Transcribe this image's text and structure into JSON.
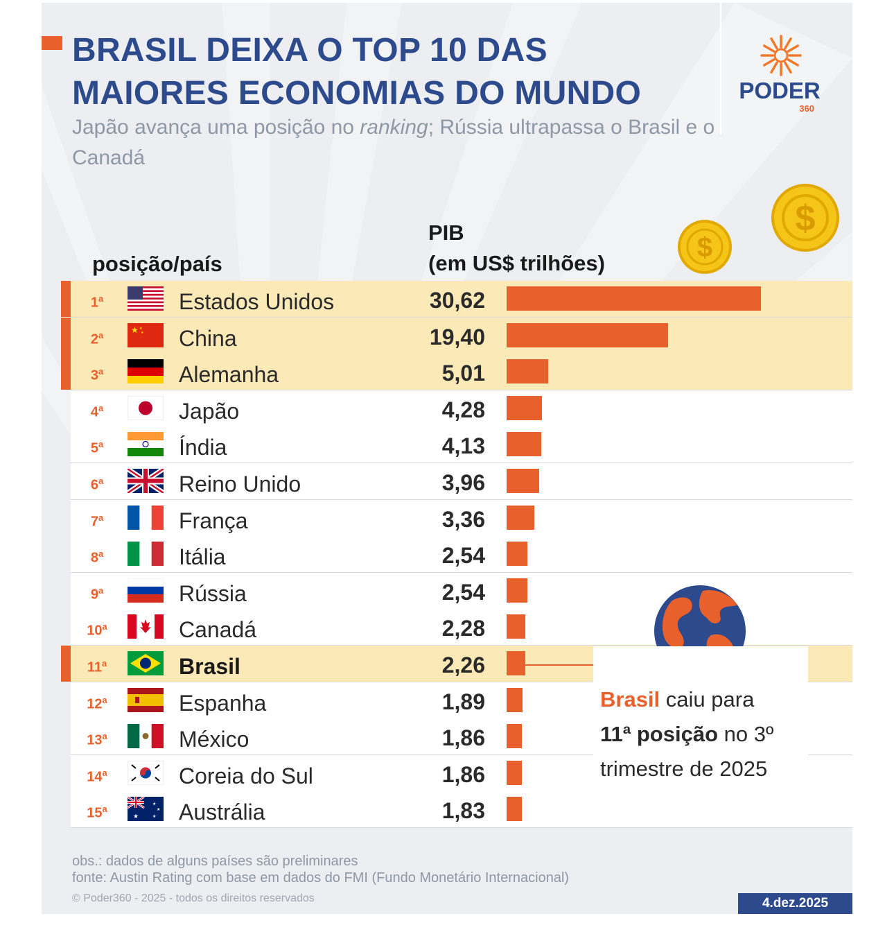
{
  "header": {
    "title_line1": "BRASIL DEIXA O TOP 10 DAS",
    "title_line2": "MAIORES ECONOMIAS DO MUNDO",
    "subtitle_a": "Japão avança uma posição no ",
    "subtitle_em": "ranking",
    "subtitle_b": "; Rússia ultrapassa o Brasil e o Canadá"
  },
  "logo": {
    "name": "PODER",
    "sub": "360"
  },
  "colors": {
    "accent": "#e8612c",
    "navy": "#2c4a8c",
    "highlight": "#fbeab7",
    "background": "#eceef1"
  },
  "chart_data": {
    "type": "bar",
    "orientation": "horizontal",
    "title": "BRASIL DEIXA O TOP 10 DAS MAIORES ECONOMIAS DO MUNDO",
    "column_headers": {
      "position_country": "posição/país",
      "pib_line1": "PIB",
      "pib_line2": "(em US$ trilhões)"
    },
    "xlim": [
      0,
      30.62
    ],
    "rows": [
      {
        "rank": "1",
        "country": "Estados Unidos",
        "value": 30.62,
        "label": "30,62",
        "flag": "us-flag-icon",
        "highlight": "top3"
      },
      {
        "rank": "2",
        "country": "China",
        "value": 19.4,
        "label": "19,40",
        "flag": "china-flag-icon",
        "highlight": "top3"
      },
      {
        "rank": "3",
        "country": "Alemanha",
        "value": 5.01,
        "label": "5,01",
        "flag": "germany-flag-icon",
        "highlight": "top3"
      },
      {
        "rank": "4",
        "country": "Japão",
        "value": 4.28,
        "label": "4,28",
        "flag": "japan-flag-icon",
        "highlight": ""
      },
      {
        "rank": "5",
        "country": "Índia",
        "value": 4.13,
        "label": "4,13",
        "flag": "india-flag-icon",
        "highlight": ""
      },
      {
        "rank": "6",
        "country": "Reino Unido",
        "value": 3.96,
        "label": "3,96",
        "flag": "uk-flag-icon",
        "highlight": ""
      },
      {
        "rank": "7",
        "country": "França",
        "value": 3.36,
        "label": "3,36",
        "flag": "france-flag-icon",
        "highlight": ""
      },
      {
        "rank": "8",
        "country": "Itália",
        "value": 2.54,
        "label": "2,54",
        "flag": "italy-flag-icon",
        "highlight": ""
      },
      {
        "rank": "9",
        "country": "Rússia",
        "value": 2.54,
        "label": "2,54",
        "flag": "russia-flag-icon",
        "highlight": ""
      },
      {
        "rank": "10",
        "country": "Canadá",
        "value": 2.28,
        "label": "2,28",
        "flag": "canada-flag-icon",
        "highlight": ""
      },
      {
        "rank": "11",
        "country": "Brasil",
        "value": 2.26,
        "label": "2,26",
        "flag": "brazil-flag-icon",
        "highlight": "brasil"
      },
      {
        "rank": "12",
        "country": "Espanha",
        "value": 1.89,
        "label": "1,89",
        "flag": "spain-flag-icon",
        "highlight": ""
      },
      {
        "rank": "13",
        "country": "México",
        "value": 1.86,
        "label": "1,86",
        "flag": "mexico-flag-icon",
        "highlight": ""
      },
      {
        "rank": "14",
        "country": "Coreia do Sul",
        "value": 1.86,
        "label": "1,86",
        "flag": "south-korea-flag-icon",
        "highlight": ""
      },
      {
        "rank": "15",
        "country": "Austrália",
        "value": 1.83,
        "label": "1,83",
        "flag": "australia-flag-icon",
        "highlight": ""
      }
    ]
  },
  "callout": {
    "brasil": "Brasil",
    "t1": " caiu para",
    "pos": "11ª posição",
    "t2": " no 3º trimestre de 2025"
  },
  "footer": {
    "obs": "obs.: dados de alguns países são preliminares",
    "source": "fonte: Austin Rating com base em dados do FMI (Fundo Monetário Internacional)",
    "copyright": "© Poder360 - 2025 - todos os direitos reservados",
    "date": "4.dez.2025"
  }
}
